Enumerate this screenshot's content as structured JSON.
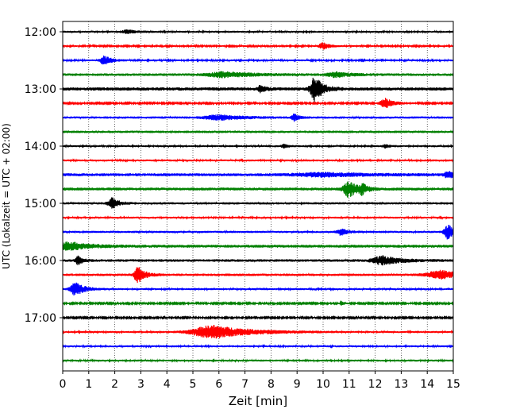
{
  "chart_data": {
    "type": "line",
    "title": "",
    "xlabel": "Zeit  [min]",
    "ylabel": "UTC (Lokalzeit = UTC + 02:00)",
    "xlim": [
      0,
      15
    ],
    "x_ticks": [
      0,
      1,
      2,
      3,
      4,
      5,
      6,
      7,
      8,
      9,
      10,
      11,
      12,
      13,
      14,
      15
    ],
    "y_tick_labels": [
      "12:00",
      "13:00",
      "14:00",
      "15:00",
      "16:00",
      "17:00"
    ],
    "grid": "vertical dotted",
    "color_cycle": [
      "#000000",
      "#ff0000",
      "#0000ff",
      "#008000"
    ],
    "traces": [
      {
        "start": "12:00",
        "color": "#000000",
        "noise": 1.2,
        "events": [
          {
            "t": 2.5,
            "amp": 2,
            "dur": 0.4
          }
        ]
      },
      {
        "start": "12:15",
        "color": "#ff0000",
        "noise": 1.0,
        "events": [
          {
            "t": 10.0,
            "amp": 4,
            "dur": 0.3
          }
        ]
      },
      {
        "start": "12:30",
        "color": "#0000ff",
        "noise": 1.1,
        "events": [
          {
            "t": 1.6,
            "amp": 6,
            "dur": 0.3
          }
        ]
      },
      {
        "start": "12:45",
        "color": "#008000",
        "noise": 1.6,
        "events": [
          {
            "t": 6.2,
            "amp": 3,
            "dur": 1.2
          },
          {
            "t": 10.5,
            "amp": 3,
            "dur": 0.6
          }
        ]
      },
      {
        "start": "13:00",
        "color": "#000000",
        "noise": 2.0,
        "events": [
          {
            "t": 7.6,
            "amp": 4,
            "dur": 0.2
          },
          {
            "t": 9.7,
            "amp": 16,
            "dur": 0.35
          }
        ]
      },
      {
        "start": "13:15",
        "color": "#ff0000",
        "noise": 0.9,
        "events": [
          {
            "t": 12.4,
            "amp": 6,
            "dur": 0.4
          }
        ]
      },
      {
        "start": "13:30",
        "color": "#0000ff",
        "noise": 1.4,
        "events": [
          {
            "t": 6.0,
            "amp": 3,
            "dur": 1.0
          },
          {
            "t": 8.9,
            "amp": 4,
            "dur": 0.2
          }
        ]
      },
      {
        "start": "13:45",
        "color": "#008000",
        "noise": 1.5,
        "events": []
      },
      {
        "start": "14:00",
        "color": "#000000",
        "noise": 1.2,
        "events": [
          {
            "t": 8.5,
            "amp": 2,
            "dur": 0.2
          },
          {
            "t": 12.4,
            "amp": 2,
            "dur": 0.2
          }
        ]
      },
      {
        "start": "14:15",
        "color": "#ff0000",
        "noise": 1.2,
        "events": []
      },
      {
        "start": "14:30",
        "color": "#0000ff",
        "noise": 1.8,
        "events": [
          {
            "t": 10.0,
            "amp": 2,
            "dur": 2.0
          },
          {
            "t": 14.8,
            "amp": 4,
            "dur": 0.3
          }
        ]
      },
      {
        "start": "14:45",
        "color": "#008000",
        "noise": 1.8,
        "events": [
          {
            "t": 11.0,
            "amp": 10,
            "dur": 0.4
          },
          {
            "t": 11.5,
            "amp": 5,
            "dur": 0.2
          }
        ]
      },
      {
        "start": "15:00",
        "color": "#000000",
        "noise": 1.4,
        "events": [
          {
            "t": 1.9,
            "amp": 7,
            "dur": 0.3
          }
        ]
      },
      {
        "start": "15:15",
        "color": "#ff0000",
        "noise": 1.2,
        "events": []
      },
      {
        "start": "15:30",
        "color": "#0000ff",
        "noise": 1.3,
        "events": [
          {
            "t": 10.7,
            "amp": 4,
            "dur": 0.3
          },
          {
            "t": 14.8,
            "amp": 9,
            "dur": 0.3
          }
        ]
      },
      {
        "start": "15:45",
        "color": "#008000",
        "noise": 1.8,
        "events": [
          {
            "t": 0.3,
            "amp": 5,
            "dur": 0.8
          }
        ]
      },
      {
        "start": "16:00",
        "color": "#000000",
        "noise": 1.6,
        "events": [
          {
            "t": 0.6,
            "amp": 5,
            "dur": 0.2
          },
          {
            "t": 12.3,
            "amp": 5,
            "dur": 0.8
          }
        ]
      },
      {
        "start": "16:15",
        "color": "#ff0000",
        "noise": 1.5,
        "events": [
          {
            "t": 2.9,
            "amp": 10,
            "dur": 0.3
          },
          {
            "t": 14.5,
            "amp": 5,
            "dur": 1.0
          }
        ]
      },
      {
        "start": "16:30",
        "color": "#0000ff",
        "noise": 1.2,
        "events": [
          {
            "t": 0.5,
            "amp": 8,
            "dur": 0.4
          }
        ]
      },
      {
        "start": "16:45",
        "color": "#008000",
        "noise": 0.9,
        "events": [
          {
            "t": 10.7,
            "amp": 3,
            "dur": 0.1
          }
        ]
      },
      {
        "start": "17:00",
        "color": "#000000",
        "noise": 0.9,
        "events": []
      },
      {
        "start": "17:15",
        "color": "#ff0000",
        "noise": 1.2,
        "events": [
          {
            "t": 5.8,
            "amp": 8,
            "dur": 1.6
          }
        ]
      },
      {
        "start": "17:30",
        "color": "#0000ff",
        "noise": 1.2,
        "events": []
      },
      {
        "start": "17:45",
        "color": "#008000",
        "noise": 1.2,
        "events": []
      }
    ]
  }
}
